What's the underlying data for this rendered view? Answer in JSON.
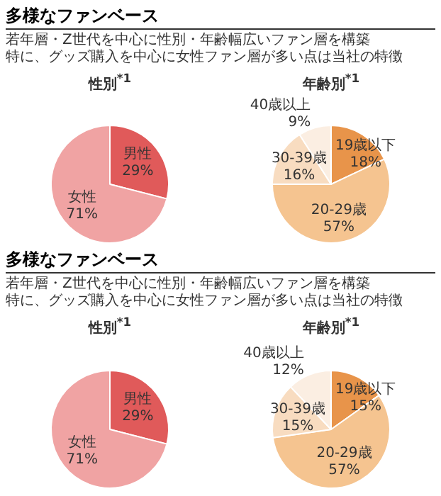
{
  "chart_data": [
    {
      "type": "other",
      "title": "多様なファンベース",
      "annotations": [
        "若年層・Z世代を中心に性別・年齢幅広いファン層を構築",
        "特に、グッズ購入を中心に女性ファン層が多い点は当社の特徴"
      ]
    },
    {
      "type": "pie",
      "title": "性別$^{*1}$",
      "categories": [
        "男性",
        "女性"
      ],
      "values": [
        29,
        71
      ],
      "value_labels": [
        "29%",
        "71%"
      ],
      "colors": [
        "#e05a5a",
        "#f0a3a3"
      ]
    },
    {
      "type": "pie",
      "title": "年齢別$^{*1}$",
      "categories": [
        "19歳以下",
        "20-29歳",
        "30-39歳",
        "40歳以上"
      ],
      "values": [
        18,
        57,
        16,
        9
      ],
      "value_labels": [
        "18%",
        "57%",
        "16%",
        "9%"
      ],
      "colors": [
        "#e8944a",
        "#f5c490",
        "#f8dcc0",
        "#fbeee2"
      ]
    },
    {
      "type": "other",
      "title": "多様なファンベース",
      "annotations": [
        "若年層・Z世代を中心に性別・年齢幅広いファン層を構築",
        "特に、グッズ購入を中心に女性ファン層が多い点は当社の特徴"
      ]
    },
    {
      "type": "pie",
      "title": "性別$^{*1}$",
      "categories": [
        "男性",
        "女性"
      ],
      "values": [
        29,
        71
      ],
      "value_labels": [
        "29%",
        "71%"
      ],
      "colors": [
        "#e05a5a",
        "#f0a3a3"
      ]
    },
    {
      "type": "pie",
      "title": "年齢別$^{*1}$",
      "categories": [
        "19歳以下",
        "20-29歳",
        "30-39歳",
        "40歳以上"
      ],
      "values": [
        15,
        57,
        15,
        12
      ],
      "value_labels": [
        "15%",
        "57%",
        "15%",
        "12%"
      ],
      "colors": [
        "#e8944a",
        "#f5c490",
        "#f8dcc0",
        "#fbeee2"
      ]
    }
  ]
}
